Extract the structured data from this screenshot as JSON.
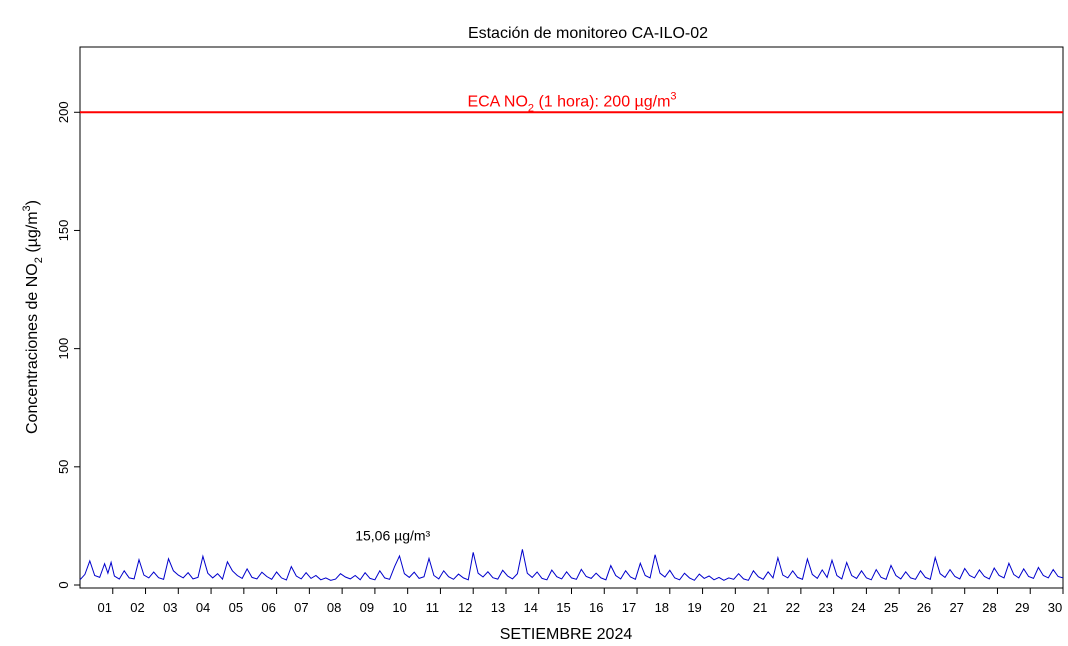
{
  "chart_data": {
    "type": "line",
    "title": "Estación de monitoreo  CA-ILO-02",
    "xlabel": "SETIEMBRE 2024",
    "ylabel": "Concentraciones de NO",
    "ylabel_sub": "2",
    "ylabel_mid": " (µg/m",
    "ylabel_sup": "3",
    "ylabel_end": ")",
    "x_range": [
      0,
      30
    ],
    "ylim": [
      0,
      220
    ],
    "y_ticks": [
      0,
      50,
      100,
      150,
      200
    ],
    "x_tick_labels": [
      "01",
      "02",
      "03",
      "04",
      "05",
      "06",
      "07",
      "08",
      "09",
      "10",
      "11",
      "12",
      "13",
      "14",
      "15",
      "16",
      "17",
      "18",
      "19",
      "20",
      "21",
      "22",
      "23",
      "24",
      "25",
      "26",
      "27",
      "28",
      "29",
      "30"
    ],
    "grid": false,
    "threshold": {
      "value": 200,
      "label_pre": "ECA NO",
      "label_sub": "2",
      "label_mid": " (1 hora): 200 µg/m",
      "label_sup": "3",
      "color": "#ff0000"
    },
    "max_annotation": {
      "text": "15,06 µg/m³",
      "day": 9.33,
      "value": 15.06
    },
    "series": [
      {
        "color": "#0000cc",
        "points": [
          [
            0.0,
            2.2
          ],
          [
            0.15,
            4.5
          ],
          [
            0.3,
            10.2
          ],
          [
            0.45,
            4.0
          ],
          [
            0.6,
            3.2
          ],
          [
            0.75,
            9.0
          ],
          [
            0.85,
            5.0
          ],
          [
            0.95,
            9.6
          ],
          [
            1.05,
            3.8
          ],
          [
            1.2,
            2.5
          ],
          [
            1.35,
            6.0
          ],
          [
            1.5,
            3.0
          ],
          [
            1.65,
            2.6
          ],
          [
            1.8,
            10.7
          ],
          [
            1.95,
            4.2
          ],
          [
            2.1,
            3.0
          ],
          [
            2.25,
            5.5
          ],
          [
            2.4,
            3.1
          ],
          [
            2.55,
            2.4
          ],
          [
            2.7,
            11.1
          ],
          [
            2.85,
            6.0
          ],
          [
            3.0,
            4.2
          ],
          [
            3.15,
            3.0
          ],
          [
            3.3,
            5.2
          ],
          [
            3.45,
            2.6
          ],
          [
            3.6,
            3.2
          ],
          [
            3.75,
            12.2
          ],
          [
            3.9,
            5.0
          ],
          [
            4.05,
            3.0
          ],
          [
            4.2,
            4.8
          ],
          [
            4.35,
            2.5
          ],
          [
            4.5,
            9.8
          ],
          [
            4.65,
            6.0
          ],
          [
            4.8,
            4.0
          ],
          [
            4.95,
            2.8
          ],
          [
            5.1,
            6.8
          ],
          [
            5.25,
            3.2
          ],
          [
            5.4,
            2.6
          ],
          [
            5.55,
            5.4
          ],
          [
            5.7,
            3.6
          ],
          [
            5.85,
            2.4
          ],
          [
            6.0,
            5.5
          ],
          [
            6.15,
            3.0
          ],
          [
            6.3,
            2.1
          ],
          [
            6.45,
            7.8
          ],
          [
            6.6,
            3.8
          ],
          [
            6.75,
            2.6
          ],
          [
            6.9,
            5.2
          ],
          [
            7.05,
            2.8
          ],
          [
            7.2,
            4.0
          ],
          [
            7.35,
            2.2
          ],
          [
            7.5,
            3.0
          ],
          [
            7.65,
            2.0
          ],
          [
            7.8,
            2.5
          ],
          [
            7.95,
            4.8
          ],
          [
            8.1,
            3.4
          ],
          [
            8.25,
            2.6
          ],
          [
            8.4,
            4.0
          ],
          [
            8.55,
            2.2
          ],
          [
            8.7,
            5.2
          ],
          [
            8.85,
            2.8
          ],
          [
            9.0,
            2.2
          ],
          [
            9.15,
            6.0
          ],
          [
            9.3,
            3.0
          ],
          [
            9.45,
            2.4
          ],
          [
            9.6,
            7.8
          ],
          [
            9.75,
            12.3
          ],
          [
            9.9,
            4.8
          ],
          [
            10.05,
            3.2
          ],
          [
            10.2,
            5.4
          ],
          [
            10.35,
            2.8
          ],
          [
            10.5,
            3.5
          ],
          [
            10.65,
            11.2
          ],
          [
            10.8,
            4.0
          ],
          [
            10.95,
            2.6
          ],
          [
            11.1,
            6.0
          ],
          [
            11.25,
            3.5
          ],
          [
            11.4,
            2.4
          ],
          [
            11.55,
            4.6
          ],
          [
            11.7,
            3.0
          ],
          [
            11.85,
            2.2
          ],
          [
            12.0,
            13.8
          ],
          [
            12.15,
            5.0
          ],
          [
            12.3,
            3.4
          ],
          [
            12.45,
            5.6
          ],
          [
            12.6,
            3.1
          ],
          [
            12.75,
            2.5
          ],
          [
            12.9,
            6.2
          ],
          [
            13.05,
            3.8
          ],
          [
            13.2,
            2.6
          ],
          [
            13.35,
            4.8
          ],
          [
            13.5,
            15.06
          ],
          [
            13.65,
            5.0
          ],
          [
            13.8,
            3.2
          ],
          [
            13.95,
            5.5
          ],
          [
            14.1,
            2.8
          ],
          [
            14.25,
            2.2
          ],
          [
            14.4,
            6.3
          ],
          [
            14.55,
            3.5
          ],
          [
            14.7,
            2.6
          ],
          [
            14.85,
            5.6
          ],
          [
            15.0,
            3.0
          ],
          [
            15.15,
            2.4
          ],
          [
            15.3,
            6.6
          ],
          [
            15.45,
            3.6
          ],
          [
            15.6,
            2.8
          ],
          [
            15.75,
            5.0
          ],
          [
            15.9,
            3.0
          ],
          [
            16.05,
            2.2
          ],
          [
            16.2,
            8.2
          ],
          [
            16.35,
            4.0
          ],
          [
            16.5,
            2.6
          ],
          [
            16.65,
            6.0
          ],
          [
            16.8,
            3.4
          ],
          [
            16.95,
            2.4
          ],
          [
            17.1,
            9.2
          ],
          [
            17.25,
            4.0
          ],
          [
            17.4,
            3.0
          ],
          [
            17.55,
            12.8
          ],
          [
            17.7,
            5.0
          ],
          [
            17.85,
            3.4
          ],
          [
            18.0,
            6.2
          ],
          [
            18.15,
            3.0
          ],
          [
            18.3,
            2.2
          ],
          [
            18.45,
            5.0
          ],
          [
            18.6,
            3.0
          ],
          [
            18.75,
            2.0
          ],
          [
            18.9,
            4.6
          ],
          [
            19.05,
            2.8
          ],
          [
            19.2,
            3.8
          ],
          [
            19.35,
            2.2
          ],
          [
            19.5,
            3.2
          ],
          [
            19.65,
            2.0
          ],
          [
            19.8,
            3.0
          ],
          [
            19.95,
            2.4
          ],
          [
            20.1,
            4.8
          ],
          [
            20.25,
            2.6
          ],
          [
            20.4,
            2.0
          ],
          [
            20.55,
            6.0
          ],
          [
            20.7,
            3.5
          ],
          [
            20.85,
            2.4
          ],
          [
            21.0,
            5.6
          ],
          [
            21.15,
            3.0
          ],
          [
            21.3,
            11.5
          ],
          [
            21.45,
            4.2
          ],
          [
            21.6,
            3.0
          ],
          [
            21.75,
            6.0
          ],
          [
            21.9,
            3.2
          ],
          [
            22.05,
            2.4
          ],
          [
            22.2,
            11.0
          ],
          [
            22.35,
            4.5
          ],
          [
            22.5,
            2.8
          ],
          [
            22.65,
            6.4
          ],
          [
            22.8,
            3.2
          ],
          [
            22.95,
            10.5
          ],
          [
            23.1,
            4.0
          ],
          [
            23.25,
            2.6
          ],
          [
            23.4,
            9.5
          ],
          [
            23.55,
            4.0
          ],
          [
            23.7,
            2.8
          ],
          [
            23.85,
            6.0
          ],
          [
            24.0,
            3.0
          ],
          [
            24.15,
            2.2
          ],
          [
            24.3,
            6.5
          ],
          [
            24.45,
            3.2
          ],
          [
            24.6,
            2.4
          ],
          [
            24.75,
            8.3
          ],
          [
            24.9,
            4.0
          ],
          [
            25.05,
            2.6
          ],
          [
            25.2,
            5.6
          ],
          [
            25.35,
            3.0
          ],
          [
            25.5,
            2.4
          ],
          [
            25.65,
            6.0
          ],
          [
            25.8,
            3.2
          ],
          [
            25.95,
            2.4
          ],
          [
            26.1,
            11.6
          ],
          [
            26.25,
            4.8
          ],
          [
            26.4,
            3.2
          ],
          [
            26.55,
            6.5
          ],
          [
            26.7,
            3.6
          ],
          [
            26.85,
            2.6
          ],
          [
            27.0,
            7.0
          ],
          [
            27.15,
            4.0
          ],
          [
            27.3,
            3.0
          ],
          [
            27.45,
            6.4
          ],
          [
            27.6,
            3.6
          ],
          [
            27.75,
            2.6
          ],
          [
            27.9,
            7.2
          ],
          [
            28.05,
            4.0
          ],
          [
            28.2,
            3.0
          ],
          [
            28.35,
            9.2
          ],
          [
            28.5,
            4.4
          ],
          [
            28.65,
            3.0
          ],
          [
            28.8,
            6.8
          ],
          [
            28.95,
            3.6
          ],
          [
            29.1,
            2.8
          ],
          [
            29.25,
            7.4
          ],
          [
            29.4,
            4.0
          ],
          [
            29.55,
            3.0
          ],
          [
            29.7,
            6.5
          ],
          [
            29.85,
            3.6
          ],
          [
            30.0,
            3.0
          ]
        ]
      }
    ]
  }
}
